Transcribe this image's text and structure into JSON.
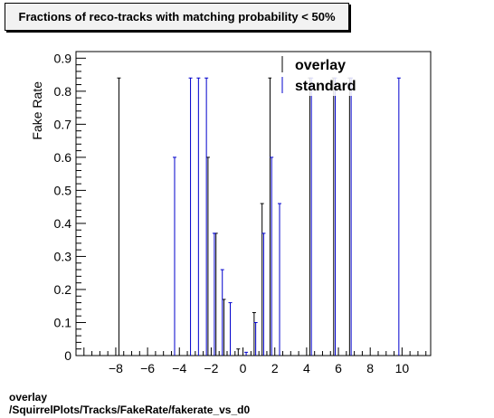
{
  "title": "Fractions of reco-tracks with matching probability < 50%",
  "footer": {
    "line1": "overlay",
    "line2": "/SquirrelPlots/Tracks/FakeRate/fakerate_vs_d0"
  },
  "chart_data": {
    "type": "bar",
    "title": "Fractions of reco-tracks with matching probability < 50%",
    "xlabel": "",
    "ylabel": "Fake Rate",
    "xlim": [
      -10.5,
      11.8
    ],
    "ylim": [
      0,
      0.92
    ],
    "x_ticks": [
      -8,
      -6,
      -4,
      -2,
      0,
      2,
      4,
      6,
      8,
      10
    ],
    "x_tick_labels": [
      "−8",
      "−6",
      "−4",
      "−2",
      "0",
      "2",
      "4",
      "6",
      "8",
      "10"
    ],
    "y_ticks": [
      0,
      0.1,
      0.2,
      0.3,
      0.4,
      0.5,
      0.6,
      0.7,
      0.8,
      0.9
    ],
    "y_tick_labels": [
      "0",
      "0.1",
      "0.2",
      "0.3",
      "0.4",
      "0.5",
      "0.6",
      "0.7",
      "0.8",
      "0.9"
    ],
    "legend_position": "top-right",
    "series": [
      {
        "name": "overlay",
        "color": "#000000",
        "points": [
          {
            "x": -7.8,
            "y": 0.84
          },
          {
            "x": -2.2,
            "y": 0.6
          },
          {
            "x": -1.7,
            "y": 0.37
          },
          {
            "x": -1.2,
            "y": 0.17
          },
          {
            "x": -0.3,
            "y": 0.02
          },
          {
            "x": 0.7,
            "y": 0.13
          },
          {
            "x": 1.2,
            "y": 0.46
          },
          {
            "x": 1.7,
            "y": 0.84
          },
          {
            "x": 4.2,
            "y": 0.84
          },
          {
            "x": 5.7,
            "y": 0.84
          },
          {
            "x": 6.7,
            "y": 0.84
          }
        ]
      },
      {
        "name": "standard",
        "color": "#0000cc",
        "points": [
          {
            "x": -4.3,
            "y": 0.6
          },
          {
            "x": -3.3,
            "y": 0.84
          },
          {
            "x": -2.8,
            "y": 0.84
          },
          {
            "x": -2.3,
            "y": 0.84
          },
          {
            "x": -1.8,
            "y": 0.37
          },
          {
            "x": -1.3,
            "y": 0.26
          },
          {
            "x": -0.8,
            "y": 0.16
          },
          {
            "x": 0.2,
            "y": 0.01
          },
          {
            "x": 0.8,
            "y": 0.1
          },
          {
            "x": 1.3,
            "y": 0.37
          },
          {
            "x": 1.8,
            "y": 0.6
          },
          {
            "x": 2.3,
            "y": 0.46
          },
          {
            "x": 4.3,
            "y": 0.84
          },
          {
            "x": 5.8,
            "y": 0.84
          },
          {
            "x": 6.8,
            "y": 0.84
          },
          {
            "x": 9.8,
            "y": 0.84
          }
        ]
      }
    ]
  }
}
